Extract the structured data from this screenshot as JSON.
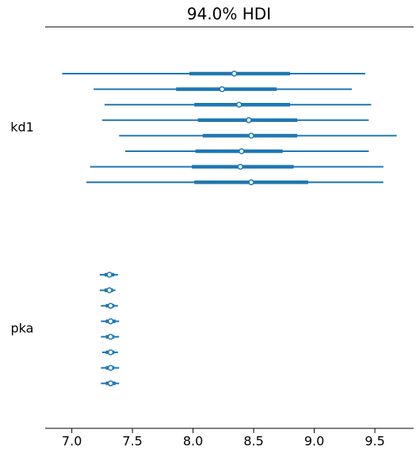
{
  "chart_data": {
    "type": "forest",
    "title": "94.0% HDI",
    "color": "#1f77b4",
    "xlim": [
      6.78,
      9.82
    ],
    "xticks": [
      {
        "value": 7,
        "label": "7.0"
      },
      7.5,
      {
        "value": 8,
        "label": "8.0"
      },
      8.5,
      {
        "value": 9,
        "label": "9.0"
      },
      9.5
    ],
    "groups": [
      {
        "name": "kd1",
        "hdi_low": [
          6.92,
          7.18,
          7.27,
          7.25,
          7.39,
          7.44,
          7.15,
          7.12
        ],
        "hdi_high": [
          9.42,
          9.31,
          9.47,
          9.45,
          9.68,
          9.45,
          9.57,
          9.57
        ],
        "q25": [
          7.97,
          7.86,
          8.01,
          8.04,
          8.08,
          8.02,
          7.99,
          8.01
        ],
        "q75": [
          8.8,
          8.69,
          8.8,
          8.86,
          8.86,
          8.74,
          8.83,
          8.95
        ],
        "median": [
          8.34,
          8.24,
          8.38,
          8.46,
          8.48,
          8.4,
          8.39,
          8.48
        ]
      },
      {
        "name": "pka",
        "hdi_low": [
          7.23,
          7.23,
          7.24,
          7.24,
          7.24,
          7.25,
          7.24,
          7.24
        ],
        "hdi_high": [
          7.38,
          7.36,
          7.38,
          7.39,
          7.39,
          7.38,
          7.39,
          7.39
        ],
        "q25": [
          7.27,
          7.27,
          7.28,
          7.28,
          7.28,
          7.28,
          7.28,
          7.28
        ],
        "q75": [
          7.35,
          7.34,
          7.35,
          7.36,
          7.35,
          7.35,
          7.35,
          7.36
        ],
        "median": [
          7.31,
          7.31,
          7.32,
          7.32,
          7.32,
          7.32,
          7.32,
          7.32
        ]
      }
    ]
  }
}
